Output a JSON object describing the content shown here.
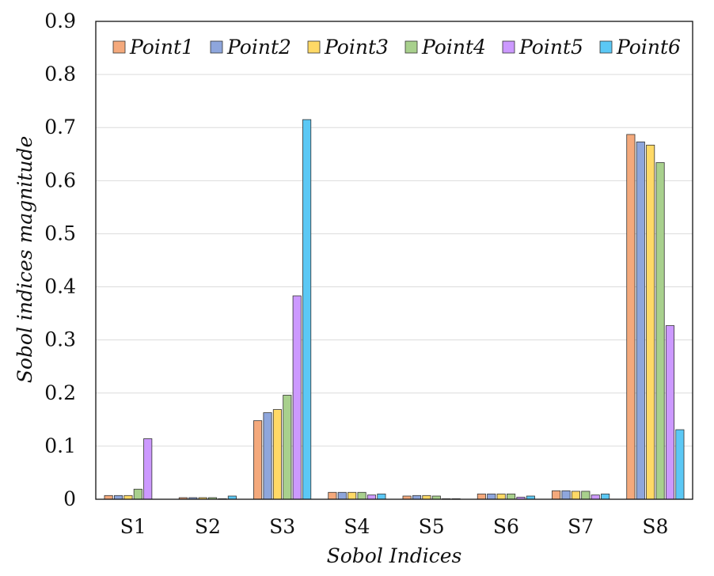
{
  "chart_data": {
    "type": "bar",
    "categories": [
      "S1",
      "S2",
      "S3",
      "S4",
      "S5",
      "S6",
      "S7",
      "S8"
    ],
    "series": [
      {
        "name": "Point1",
        "color": "#f4a97c",
        "values": [
          0.007,
          0.003,
          0.148,
          0.013,
          0.006,
          0.01,
          0.016,
          0.687
        ]
      },
      {
        "name": "Point2",
        "color": "#8ea6dc",
        "values": [
          0.007,
          0.003,
          0.163,
          0.013,
          0.007,
          0.01,
          0.016,
          0.673
        ]
      },
      {
        "name": "Point3",
        "color": "#ffd966",
        "values": [
          0.007,
          0.003,
          0.169,
          0.013,
          0.007,
          0.01,
          0.015,
          0.667
        ]
      },
      {
        "name": "Point4",
        "color": "#a8d08d",
        "values": [
          0.019,
          0.003,
          0.196,
          0.013,
          0.006,
          0.01,
          0.015,
          0.634
        ]
      },
      {
        "name": "Point5",
        "color": "#cc99ff",
        "values": [
          0.114,
          0.001,
          0.383,
          0.008,
          0.001,
          0.004,
          0.008,
          0.327
        ]
      },
      {
        "name": "Point6",
        "color": "#5bc8f5",
        "values": [
          0.0,
          0.006,
          0.715,
          0.01,
          0.001,
          0.006,
          0.01,
          0.131
        ]
      }
    ],
    "xlabel": "Sobol Indices",
    "ylabel": "Sobol indices magnitude",
    "ylim": [
      0,
      0.9
    ],
    "yticks": [
      "0",
      "0.1",
      "0.2",
      "0.3",
      "0.4",
      "0.5",
      "0.6",
      "0.7",
      "0.8",
      "0.9"
    ],
    "ytick_values": [
      0,
      0.1,
      0.2,
      0.3,
      0.4,
      0.5,
      0.6,
      0.7,
      0.8,
      0.9
    ],
    "grid": "horizontal",
    "legend_position": "top"
  }
}
